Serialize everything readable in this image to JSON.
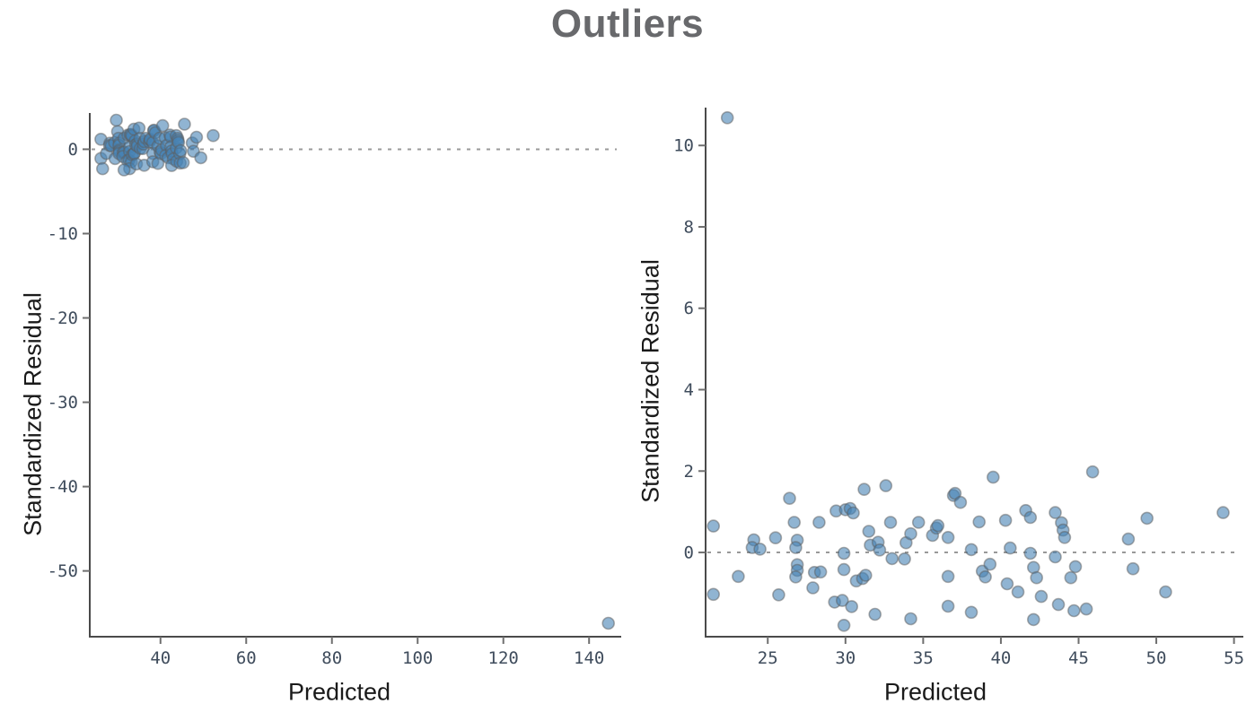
{
  "title": "Outliers",
  "style": {
    "point_fill": "#4682b4",
    "point_fill_opacity": 0.6,
    "point_edge": "#5d5d5d",
    "point_edge_opacity": 0.5,
    "axis_color": "#4a4a4a",
    "tick_color": "#6f6f6f",
    "tick_label_color": "#3f4c5c",
    "zero_line_color": "#999999",
    "title_color": "#68696c",
    "axis_label_color": "#1a1a1a"
  },
  "chart_data": [
    {
      "type": "scatter",
      "name": "residuals-with-extreme-outlier",
      "xlabel": "Predicted",
      "ylabel": "Standardized Residual",
      "xlim": [
        23.5,
        147.5
      ],
      "ylim": [
        -57.8,
        4.3
      ],
      "x_ticks": [
        40,
        60,
        80,
        100,
        120,
        140
      ],
      "y_ticks": [
        0,
        -10,
        -20,
        -30,
        -40,
        -50
      ],
      "zero_line": 0,
      "grid": false,
      "legend": null,
      "points": [
        [
          26.1,
          1.18
        ],
        [
          26.1,
          -1.09
        ],
        [
          27.4,
          -0.5
        ],
        [
          28.2,
          0.72
        ],
        [
          28.1,
          0.46
        ],
        [
          28.5,
          0.41
        ],
        [
          29.3,
          0.79
        ],
        [
          29.4,
          -1.1
        ],
        [
          30.0,
          2.1
        ],
        [
          30.2,
          1.3
        ],
        [
          30.4,
          0.71
        ],
        [
          30.3,
          0.46
        ],
        [
          30.4,
          -0.11
        ],
        [
          30.4,
          -0.29
        ],
        [
          30.3,
          -0.51
        ],
        [
          31.3,
          -0.36
        ],
        [
          31.6,
          -0.35
        ],
        [
          31.2,
          -0.87
        ],
        [
          31.5,
          1.3
        ],
        [
          32.4,
          1.68
        ],
        [
          32.9,
          1.72
        ],
        [
          33.1,
          1.76
        ],
        [
          33.3,
          1.61
        ],
        [
          32.8,
          0.27
        ],
        [
          32.8,
          -0.27
        ],
        [
          32.3,
          -1.35
        ],
        [
          32.7,
          -1.29
        ],
        [
          33.2,
          -1.5
        ],
        [
          32.8,
          -2.3
        ],
        [
          33.4,
          -0.65
        ],
        [
          33.8,
          2.39
        ],
        [
          33.8,
          -0.56
        ],
        [
          33.9,
          -0.46
        ],
        [
          34.1,
          1.0
        ],
        [
          34.2,
          0.54
        ],
        [
          34.6,
          0.64
        ],
        [
          34.6,
          0.38
        ],
        [
          34.4,
          -1.75
        ],
        [
          35.0,
          2.51
        ],
        [
          35.2,
          1.3
        ],
        [
          35.3,
          0.1
        ],
        [
          35.9,
          0.08
        ],
        [
          36.0,
          0.62
        ],
        [
          36.2,
          0.92
        ],
        [
          36.2,
          -1.9
        ],
        [
          36.6,
          1.3
        ],
        [
          37.4,
          0.87
        ],
        [
          37.6,
          1.11
        ],
        [
          37.6,
          1.19
        ],
        [
          38.2,
          0.8
        ],
        [
          38.2,
          -0.5
        ],
        [
          38.2,
          -1.48
        ],
        [
          38.4,
          2.19
        ],
        [
          38.5,
          2.26
        ],
        [
          38.8,
          1.96
        ],
        [
          39.4,
          0.39
        ],
        [
          39.8,
          1.31
        ],
        [
          39.4,
          -1.68
        ],
        [
          39.9,
          -0.32
        ],
        [
          40.1,
          -0.51
        ],
        [
          40.3,
          -0.09
        ],
        [
          40.5,
          2.8
        ],
        [
          41.1,
          1.37
        ],
        [
          41.4,
          0.45
        ],
        [
          41.2,
          -0.74
        ],
        [
          41.8,
          -1.01
        ],
        [
          42.2,
          1.69
        ],
        [
          42.4,
          1.46
        ],
        [
          42.4,
          0.27
        ],
        [
          42.6,
          -0.2
        ],
        [
          42.7,
          -0.54
        ],
        [
          43.0,
          -1.16
        ],
        [
          42.6,
          -1.93
        ],
        [
          43.7,
          1.62
        ],
        [
          43.7,
          0.15
        ],
        [
          43.8,
          -1.43
        ],
        [
          44.0,
          1.29
        ],
        [
          44.1,
          1.04
        ],
        [
          44.2,
          0.8
        ],
        [
          44.5,
          -0.54
        ],
        [
          44.7,
          -0.17
        ],
        [
          44.6,
          -1.63
        ],
        [
          45.3,
          -1.58
        ],
        [
          45.6,
          2.97
        ],
        [
          47.4,
          0.75
        ],
        [
          47.7,
          -0.24
        ],
        [
          48.4,
          1.43
        ],
        [
          49.4,
          -1.01
        ],
        [
          52.3,
          1.62
        ],
        [
          26.5,
          -2.3
        ],
        [
          31.5,
          -2.45
        ],
        [
          29.7,
          3.45
        ],
        [
          144.5,
          -56.2
        ]
      ]
    },
    {
      "type": "scatter",
      "name": "residuals-refit",
      "xlabel": "Predicted",
      "ylabel": "Standardized Residual",
      "xlim": [
        21.0,
        55.6
      ],
      "ylim": [
        -2.07,
        10.93
      ],
      "x_ticks": [
        25,
        30,
        35,
        40,
        45,
        50,
        55
      ],
      "y_ticks": [
        0,
        2,
        4,
        6,
        8,
        10
      ],
      "zero_line": 0,
      "grid": false,
      "legend": null,
      "points": [
        [
          22.4,
          10.68
        ],
        [
          21.5,
          0.65
        ],
        [
          21.5,
          -1.03
        ],
        [
          23.1,
          -0.59
        ],
        [
          24.1,
          0.31
        ],
        [
          24.0,
          0.12
        ],
        [
          24.5,
          0.08
        ],
        [
          25.5,
          0.36
        ],
        [
          25.7,
          -1.04
        ],
        [
          26.4,
          1.33
        ],
        [
          26.7,
          0.74
        ],
        [
          26.9,
          0.3
        ],
        [
          26.8,
          0.12
        ],
        [
          26.9,
          -0.3
        ],
        [
          26.9,
          -0.44
        ],
        [
          26.8,
          -0.6
        ],
        [
          28.0,
          -0.49
        ],
        [
          28.4,
          -0.48
        ],
        [
          27.9,
          -0.87
        ],
        [
          28.3,
          0.74
        ],
        [
          29.4,
          1.02
        ],
        [
          30.0,
          1.05
        ],
        [
          30.3,
          1.08
        ],
        [
          30.5,
          0.97
        ],
        [
          29.9,
          -0.02
        ],
        [
          29.9,
          -0.42
        ],
        [
          29.3,
          -1.22
        ],
        [
          29.8,
          -1.18
        ],
        [
          30.4,
          -1.33
        ],
        [
          29.9,
          -1.79
        ],
        [
          30.7,
          -0.7
        ],
        [
          31.2,
          1.55
        ],
        [
          31.1,
          -0.64
        ],
        [
          31.3,
          -0.56
        ],
        [
          31.5,
          0.52
        ],
        [
          31.6,
          0.18
        ],
        [
          32.1,
          0.25
        ],
        [
          32.2,
          0.06
        ],
        [
          31.9,
          -1.52
        ],
        [
          32.6,
          1.64
        ],
        [
          32.9,
          0.74
        ],
        [
          33.0,
          -0.15
        ],
        [
          33.8,
          -0.16
        ],
        [
          33.9,
          0.24
        ],
        [
          34.2,
          0.46
        ],
        [
          34.2,
          -1.63
        ],
        [
          34.7,
          0.74
        ],
        [
          35.6,
          0.42
        ],
        [
          35.85,
          0.6
        ],
        [
          35.95,
          0.66
        ],
        [
          36.6,
          0.37
        ],
        [
          36.6,
          -0.59
        ],
        [
          36.6,
          -1.32
        ],
        [
          36.95,
          1.4
        ],
        [
          37.05,
          1.45
        ],
        [
          37.4,
          1.23
        ],
        [
          38.1,
          0.07
        ],
        [
          38.6,
          0.75
        ],
        [
          38.1,
          -1.47
        ],
        [
          38.8,
          -0.46
        ],
        [
          39.0,
          -0.6
        ],
        [
          39.3,
          -0.29
        ],
        [
          39.5,
          1.85
        ],
        [
          40.3,
          0.79
        ],
        [
          40.6,
          0.11
        ],
        [
          40.4,
          -0.77
        ],
        [
          41.1,
          -0.97
        ],
        [
          41.6,
          1.03
        ],
        [
          41.9,
          0.86
        ],
        [
          41.9,
          -0.02
        ],
        [
          42.1,
          -0.37
        ],
        [
          42.3,
          -0.62
        ],
        [
          42.6,
          -1.08
        ],
        [
          42.1,
          -1.65
        ],
        [
          43.5,
          0.98
        ],
        [
          43.5,
          -0.11
        ],
        [
          43.7,
          -1.28
        ],
        [
          43.9,
          0.73
        ],
        [
          44.0,
          0.55
        ],
        [
          44.1,
          0.37
        ],
        [
          44.5,
          -0.62
        ],
        [
          44.8,
          -0.35
        ],
        [
          44.7,
          -1.43
        ],
        [
          45.5,
          -1.39
        ],
        [
          45.9,
          1.98
        ],
        [
          48.2,
          0.33
        ],
        [
          48.5,
          -0.4
        ],
        [
          49.4,
          0.84
        ],
        [
          50.6,
          -0.97
        ],
        [
          54.3,
          0.98
        ]
      ]
    }
  ]
}
